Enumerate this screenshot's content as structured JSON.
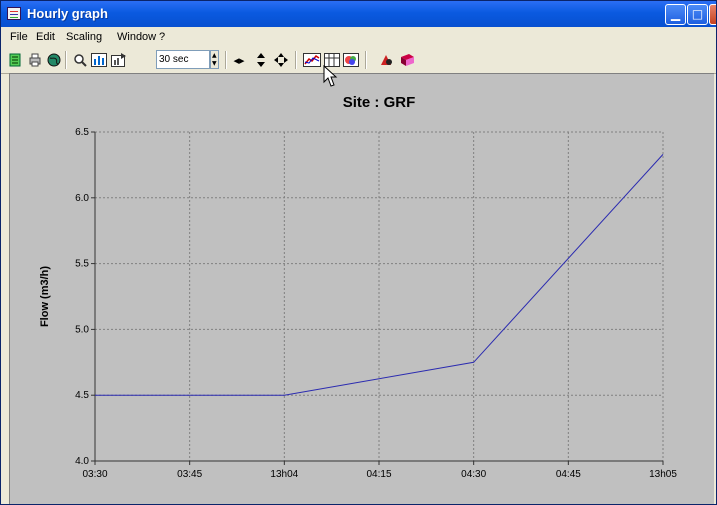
{
  "window": {
    "title": "Hourly graph"
  },
  "menu": {
    "items": [
      "File",
      "Edit",
      "Scaling",
      "Window",
      "?"
    ]
  },
  "toolbar": {
    "interval_value": "30 sec"
  },
  "colors": {
    "titlebar": "#0a5ae0",
    "plot_background": "#c0c0c0",
    "series_line": "#2b2bb0",
    "grid": "#808080"
  },
  "chart_data": {
    "type": "line",
    "title": "Site :  GRF",
    "ylabel": "Flow  (m3/h)",
    "xlabel": "",
    "x_tick_labels": [
      "03:30",
      "03:45",
      "13h04",
      "04:15",
      "04:30",
      "04:45",
      "13h05"
    ],
    "y_tick_labels": [
      "4.0",
      "4.5",
      "5.0",
      "5.5",
      "6.0",
      "6.5"
    ],
    "ylim": [
      4.0,
      6.5
    ],
    "grid": true,
    "series": [
      {
        "points": [
          {
            "x": "03:30",
            "y": 4.5
          },
          {
            "x": "13h04",
            "y": 4.5
          },
          {
            "x": "04:30",
            "y": 4.75
          },
          {
            "x": "13h05",
            "y": 6.33
          }
        ]
      }
    ]
  }
}
